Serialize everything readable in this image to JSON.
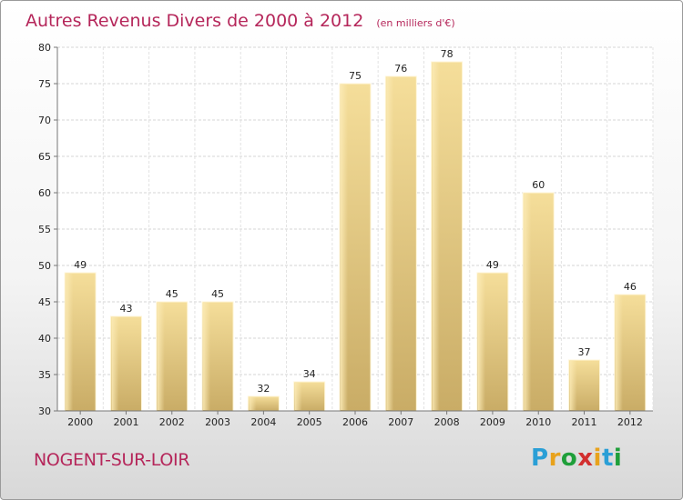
{
  "chart_data": {
    "type": "bar",
    "title": "Autres Revenus Divers de 2000 à 2012",
    "subtitle": "(en milliers d'€)",
    "categories": [
      "2000",
      "2001",
      "2002",
      "2003",
      "2004",
      "2005",
      "2006",
      "2007",
      "2008",
      "2009",
      "2010",
      "2011",
      "2012"
    ],
    "values": [
      49,
      43,
      45,
      45,
      32,
      34,
      75,
      76,
      78,
      49,
      60,
      37,
      46
    ],
    "ylim": [
      30,
      80
    ],
    "yticks": [
      30,
      35,
      40,
      45,
      50,
      55,
      60,
      65,
      70,
      75,
      80
    ],
    "xlabel": "",
    "ylabel": "",
    "grid": true,
    "bar_color": "#e0c882"
  },
  "footer": {
    "commune": "NOGENT-SUR-LOIR",
    "logo_text": "Proxiti",
    "logo_colors": [
      "#2a9fd6",
      "#e8a21c",
      "#1f9f3a",
      "#d22f2f",
      "#e8a21c",
      "#2a9fd6",
      "#1f9f3a"
    ]
  }
}
